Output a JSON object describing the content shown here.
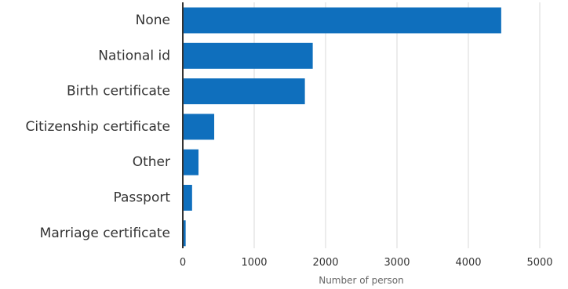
{
  "chart_data": {
    "type": "bar",
    "orientation": "horizontal",
    "categories": [
      "None",
      "National id",
      "Birth certificate",
      "Citizenship certificate",
      "Other",
      "Passport",
      "Marriage certificate"
    ],
    "values": [
      4460,
      1820,
      1710,
      440,
      220,
      130,
      40
    ],
    "xlabel": "Number of person",
    "ylabel": "",
    "xlim": [
      0,
      5000
    ],
    "xticks": [
      0,
      1000,
      2000,
      3000,
      4000,
      5000
    ],
    "xtick_labels": [
      "0",
      "1000",
      "2000",
      "3000",
      "4000",
      "5000"
    ],
    "grid": "vertical",
    "bar_color": "#0f6fbd",
    "grid_color": "#d9d9d9",
    "axis_color": "#333333"
  }
}
